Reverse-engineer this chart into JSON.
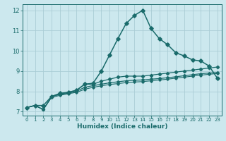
{
  "xlabel": "Humidex (Indice chaleur)",
  "bg_color": "#cce8ee",
  "line_color": "#1a6b6b",
  "grid_color": "#aacdd5",
  "xlim": [
    -0.5,
    23.5
  ],
  "ylim": [
    6.8,
    12.3
  ],
  "xticks": [
    0,
    1,
    2,
    3,
    4,
    5,
    6,
    7,
    8,
    9,
    10,
    11,
    12,
    13,
    14,
    15,
    16,
    17,
    18,
    19,
    20,
    21,
    22,
    23
  ],
  "yticks": [
    7,
    8,
    9,
    10,
    11,
    12
  ],
  "series": [
    {
      "x": [
        0,
        1,
        2,
        3,
        4,
        5,
        6,
        7,
        8,
        9,
        10,
        11,
        12,
        13,
        14,
        15,
        16,
        17,
        18,
        19,
        20,
        21,
        22,
        23
      ],
      "y": [
        7.2,
        7.3,
        7.3,
        7.75,
        7.9,
        7.95,
        8.05,
        8.35,
        8.4,
        9.0,
        9.8,
        10.6,
        11.35,
        11.75,
        12.0,
        11.1,
        10.6,
        10.3,
        9.9,
        9.75,
        9.55,
        9.5,
        9.25,
        8.65
      ],
      "marker": "D",
      "ms": 2.8,
      "lw": 1.1
    },
    {
      "x": [
        0,
        1,
        2,
        3,
        4,
        5,
        6,
        7,
        8,
        9,
        10,
        11,
        12,
        13,
        14,
        15,
        16,
        17,
        18,
        19,
        20,
        21,
        22,
        23
      ],
      "y": [
        7.2,
        7.3,
        7.1,
        7.75,
        7.85,
        7.95,
        8.05,
        8.35,
        8.35,
        8.5,
        8.6,
        8.7,
        8.75,
        8.75,
        8.75,
        8.8,
        8.85,
        8.9,
        8.95,
        9.0,
        9.05,
        9.1,
        9.15,
        9.2
      ],
      "marker": "D",
      "ms": 2.2,
      "lw": 0.9
    },
    {
      "x": [
        0,
        1,
        2,
        3,
        4,
        5,
        6,
        7,
        8,
        9,
        10,
        11,
        12,
        13,
        14,
        15,
        16,
        17,
        18,
        19,
        20,
        21,
        22,
        23
      ],
      "y": [
        7.2,
        7.3,
        7.1,
        7.75,
        7.85,
        7.9,
        8.0,
        8.2,
        8.28,
        8.35,
        8.42,
        8.47,
        8.52,
        8.55,
        8.56,
        8.6,
        8.63,
        8.67,
        8.72,
        8.77,
        8.82,
        8.87,
        8.9,
        8.93
      ],
      "marker": "D",
      "ms": 2.0,
      "lw": 0.9
    },
    {
      "x": [
        0,
        1,
        2,
        3,
        4,
        5,
        6,
        7,
        8,
        9,
        10,
        11,
        12,
        13,
        14,
        15,
        16,
        17,
        18,
        19,
        20,
        21,
        22,
        23
      ],
      "y": [
        7.2,
        7.3,
        7.1,
        7.7,
        7.8,
        7.88,
        7.95,
        8.1,
        8.2,
        8.27,
        8.34,
        8.38,
        8.43,
        8.46,
        8.48,
        8.52,
        8.56,
        8.6,
        8.65,
        8.7,
        8.75,
        8.8,
        8.84,
        8.88
      ],
      "marker": "D",
      "ms": 1.8,
      "lw": 0.8
    }
  ]
}
